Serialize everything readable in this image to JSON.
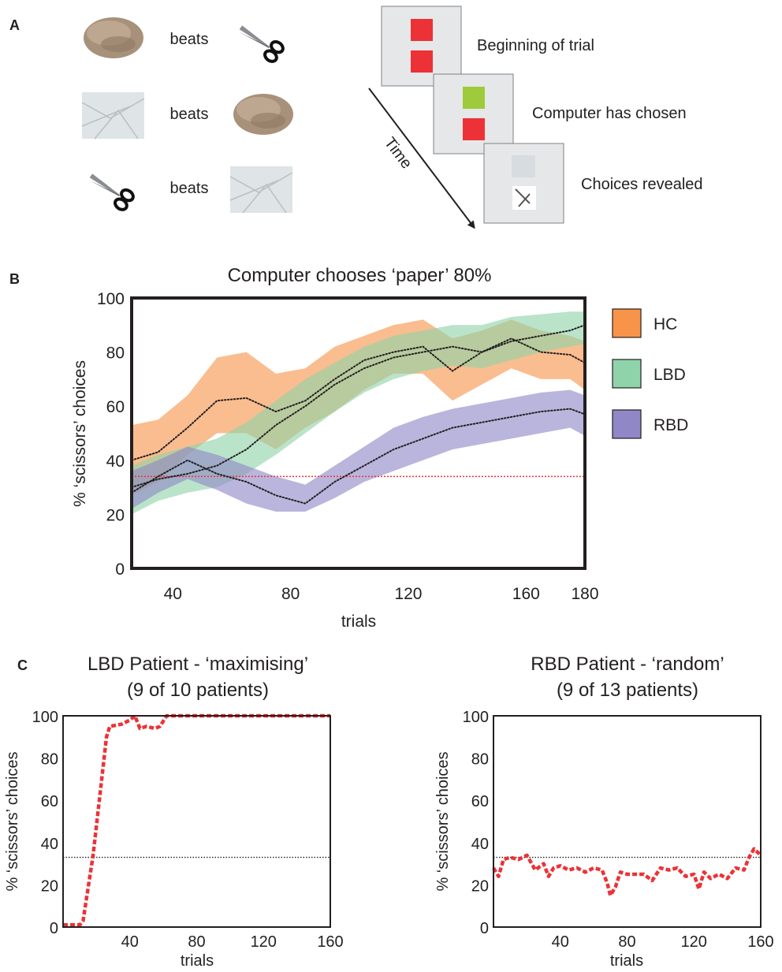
{
  "panel_a": {
    "letter": "A",
    "rules": [
      {
        "winner": "rock",
        "verb": "beats",
        "loser": "scissors"
      },
      {
        "winner": "paper",
        "verb": "beats",
        "loser": "rock"
      },
      {
        "winner": "scissors",
        "verb": "beats",
        "loser": "paper"
      }
    ],
    "steps": [
      "Beginning of trial",
      "Computer has chosen",
      "Choices revealed"
    ],
    "time_label": "Time",
    "colors": {
      "red": "#ec3237",
      "green": "#9dcb3b",
      "screen": "#e6e7e8"
    }
  },
  "panel_b": {
    "letter": "B"
  },
  "panel_c": {
    "letter": "C"
  },
  "chart_data": [
    {
      "type": "area",
      "title": "Computer chooses ‘paper’ 80%",
      "xlabel": "trials",
      "ylabel": "% ‘scissors’ choices",
      "xlim": [
        26,
        180
      ],
      "ylim": [
        0,
        100
      ],
      "xticks": [
        40,
        80,
        120,
        160,
        180
      ],
      "yticks": [
        0,
        20,
        40,
        60,
        80,
        100
      ],
      "chance_line": 34,
      "legend": "right",
      "x": [
        26,
        35,
        45,
        55,
        65,
        75,
        85,
        95,
        105,
        115,
        125,
        135,
        145,
        155,
        165,
        175,
        180
      ],
      "series": [
        {
          "name": "HC",
          "color": "#f7944a",
          "mean": [
            40,
            43,
            52,
            62,
            63,
            58,
            62,
            70,
            77,
            80,
            82,
            73,
            80,
            85,
            80,
            79,
            76
          ],
          "lower": [
            27,
            32,
            42,
            50,
            50,
            44,
            52,
            58,
            66,
            72,
            72,
            62,
            68,
            74,
            70,
            70,
            66
          ],
          "upper": [
            53,
            55,
            64,
            78,
            80,
            72,
            74,
            82,
            86,
            90,
            92,
            85,
            88,
            92,
            88,
            86,
            84
          ]
        },
        {
          "name": "LBD",
          "color": "#8fd3aa",
          "mean": [
            30,
            33,
            35,
            38,
            44,
            53,
            60,
            68,
            74,
            78,
            80,
            82,
            80,
            84,
            86,
            88,
            90
          ],
          "lower": [
            20,
            25,
            28,
            30,
            35,
            42,
            50,
            58,
            65,
            70,
            73,
            75,
            74,
            77,
            80,
            82,
            83
          ],
          "upper": [
            38,
            42,
            45,
            48,
            54,
            62,
            70,
            76,
            82,
            86,
            88,
            90,
            90,
            93,
            94,
            95,
            95
          ]
        },
        {
          "name": "RBD",
          "color": "#8f87c6",
          "mean": [
            28,
            34,
            40,
            35,
            32,
            27,
            24,
            32,
            38,
            44,
            48,
            52,
            54,
            56,
            58,
            59,
            57
          ],
          "lower": [
            22,
            28,
            33,
            29,
            24,
            21,
            21,
            26,
            32,
            36,
            40,
            44,
            46,
            48,
            50,
            52,
            49
          ],
          "upper": [
            36,
            40,
            45,
            42,
            38,
            34,
            31,
            38,
            45,
            52,
            56,
            59,
            61,
            63,
            65,
            66,
            64
          ]
        }
      ]
    },
    {
      "type": "line",
      "title": "LBD Patient - ‘maximising’",
      "subtitle": "(9 of 10 patients)",
      "xlabel": "trials",
      "ylabel": "% ‘scissors’ choices",
      "xlim": [
        0,
        160
      ],
      "ylim": [
        0,
        100
      ],
      "xticks": [
        40,
        80,
        120,
        160
      ],
      "yticks": [
        0,
        20,
        40,
        60,
        80,
        100
      ],
      "chance_line": 33,
      "series": [
        {
          "name": "LBD patient",
          "color": "#ec3237",
          "x": [
            0,
            10,
            12,
            18,
            26,
            28,
            35,
            40,
            43,
            46,
            50,
            55,
            58,
            62,
            70,
            100,
            130,
            160
          ],
          "y": [
            1,
            1,
            3,
            34,
            90,
            95,
            96,
            98,
            100,
            94,
            95,
            94,
            95,
            100,
            100,
            100,
            100,
            100
          ]
        }
      ]
    },
    {
      "type": "line",
      "title": "RBD Patient - ‘random’",
      "subtitle": "(9 of 13 patients)",
      "xlabel": "trials",
      "ylabel": "% ‘scissors’ choices",
      "xlim": [
        0,
        160
      ],
      "ylim": [
        0,
        100
      ],
      "xticks": [
        40,
        80,
        120,
        160
      ],
      "yticks": [
        0,
        20,
        40,
        60,
        80,
        100
      ],
      "chance_line": 33,
      "series": [
        {
          "name": "RBD patient",
          "color": "#ec3237",
          "x": [
            0,
            3,
            6,
            10,
            15,
            20,
            25,
            30,
            33,
            36,
            40,
            45,
            50,
            55,
            60,
            65,
            68,
            70,
            73,
            76,
            80,
            85,
            90,
            95,
            100,
            105,
            110,
            115,
            120,
            123,
            126,
            130,
            135,
            140,
            145,
            150,
            153,
            156,
            160
          ],
          "y": [
            28,
            24,
            32,
            33,
            32,
            34,
            27,
            30,
            24,
            28,
            29,
            27,
            28,
            26,
            28,
            27,
            21,
            15,
            19,
            26,
            25,
            25,
            25,
            22,
            28,
            27,
            28,
            24,
            25,
            18,
            26,
            23,
            25,
            23,
            28,
            27,
            33,
            37,
            34
          ]
        }
      ]
    }
  ]
}
